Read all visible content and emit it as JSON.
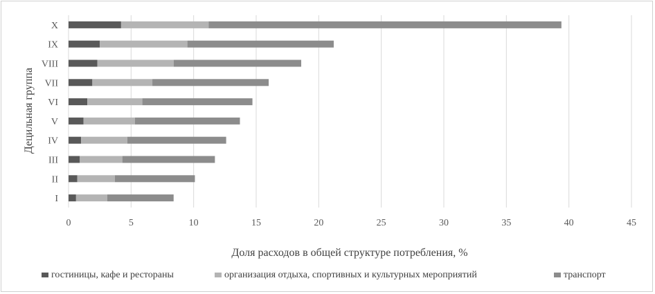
{
  "chart_data": {
    "type": "bar",
    "orientation": "horizontal",
    "stacked": true,
    "categories": [
      "I",
      "II",
      "III",
      "IV",
      "V",
      "VI",
      "VII",
      "VIII",
      "IX",
      "X"
    ],
    "series": [
      {
        "name": "гостиницы, кафе и рестораны",
        "color": "#595959",
        "values": [
          0.6,
          0.7,
          0.9,
          1.0,
          1.2,
          1.5,
          1.9,
          2.3,
          2.5,
          4.2
        ]
      },
      {
        "name": "организация отдыха, спортивных и культурных мероприятий",
        "color": "#b4b4b4",
        "values": [
          2.5,
          3.0,
          3.4,
          3.7,
          4.1,
          4.4,
          4.8,
          6.1,
          7.0,
          7.0
        ]
      },
      {
        "name": "транспорт",
        "color": "#8c8c8c",
        "values": [
          5.3,
          6.4,
          7.4,
          7.9,
          8.4,
          8.8,
          9.3,
          10.2,
          11.7,
          28.2
        ]
      }
    ],
    "xlabel": "Доля расходов в общей структуре  потребления, %",
    "ylabel": "Децильная группа",
    "xlim": [
      0,
      45
    ],
    "xticks": [
      0,
      5,
      10,
      15,
      20,
      25,
      30,
      35,
      40,
      45
    ],
    "grid": "vertical",
    "legend": "bottom"
  }
}
